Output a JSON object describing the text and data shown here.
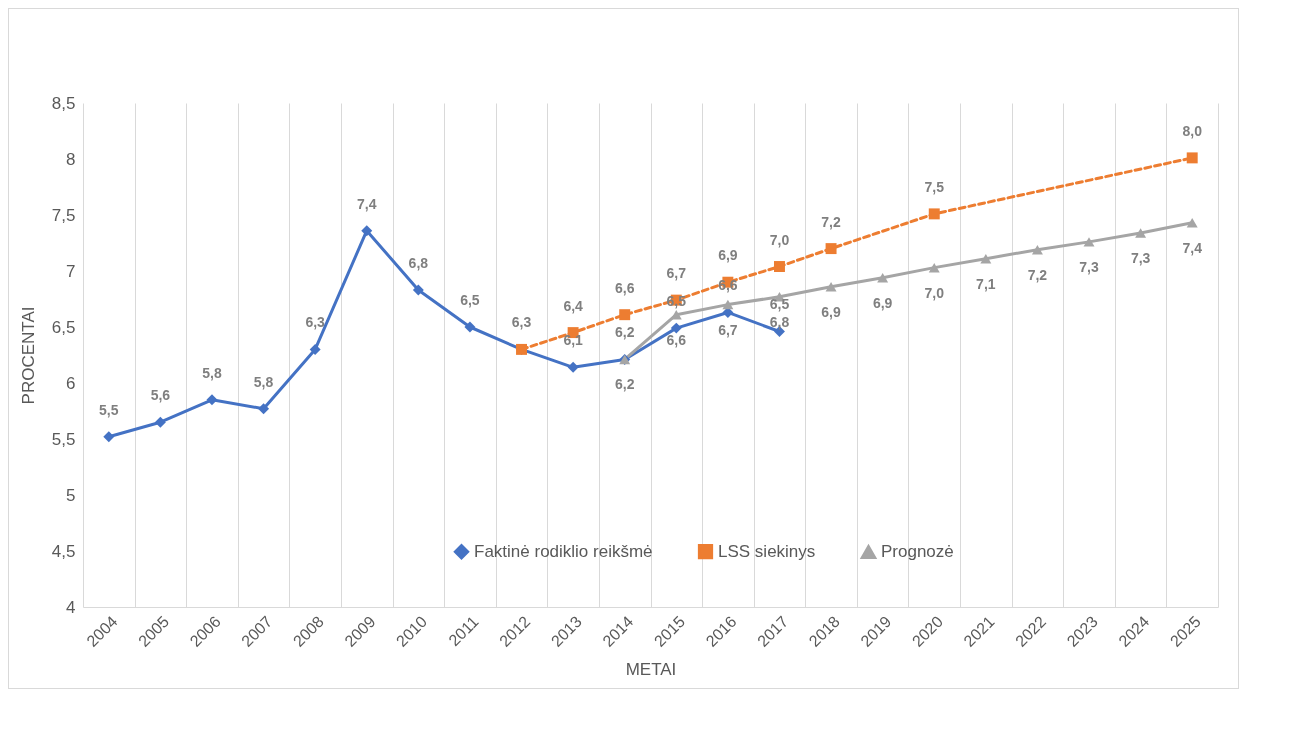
{
  "chart_data": {
    "type": "line",
    "xlabel": "METAI",
    "ylabel": "PROCENTAI",
    "categories": [
      "2004",
      "2005",
      "2006",
      "2007",
      "2008",
      "2009",
      "2010",
      "2011",
      "2012",
      "2013",
      "2014",
      "2015",
      "2016",
      "2017",
      "2018",
      "2019",
      "2020",
      "2021",
      "2022",
      "2023",
      "2024",
      "2025"
    ],
    "series": [
      {
        "name": "Faktinė rodiklio reikšmė",
        "color": "#4472c4",
        "marker": "diamond",
        "line_style": "solid",
        "values": [
          5.52,
          5.65,
          5.85,
          5.77,
          6.3,
          7.36,
          6.83,
          6.5,
          6.3,
          6.14,
          6.21,
          6.49,
          6.63,
          6.46,
          null,
          null,
          null,
          null,
          null,
          null,
          null,
          null
        ],
        "value_labels": [
          "5,5",
          "5,6",
          "5,8",
          "5,8",
          "6,3",
          "7,4",
          "6,8",
          "6,5",
          null,
          "6,1",
          "6,2",
          "6,5",
          "6,6",
          "6,5",
          null,
          null,
          null,
          null,
          null,
          null,
          null,
          null
        ]
      },
      {
        "name": "LSS siekinys",
        "color": "#ed7d31",
        "marker": "square",
        "line_style": "dashed",
        "values": [
          null,
          null,
          null,
          null,
          null,
          null,
          null,
          null,
          6.3,
          6.45,
          6.61,
          6.74,
          6.9,
          7.04,
          7.2,
          null,
          7.51,
          null,
          null,
          null,
          null,
          8.01
        ],
        "value_labels": [
          null,
          null,
          null,
          null,
          null,
          null,
          null,
          null,
          "6,3",
          "6,4",
          "6,6",
          "6,7",
          "6,9",
          "7,0",
          "7,2",
          null,
          "7,5",
          null,
          null,
          null,
          null,
          "8,0"
        ]
      },
      {
        "name": "Prognozė",
        "color": "#a5a5a5",
        "marker": "triangle",
        "line_style": "solid",
        "values": [
          null,
          null,
          null,
          null,
          null,
          null,
          null,
          null,
          null,
          null,
          6.21,
          6.61,
          6.7,
          6.77,
          6.86,
          6.94,
          7.03,
          7.11,
          7.19,
          7.26,
          7.34,
          7.43
        ],
        "value_labels": [
          null,
          null,
          null,
          null,
          null,
          null,
          null,
          null,
          null,
          null,
          "6,2",
          "6,6",
          "6,7",
          "6,8",
          "6,9",
          "6,9",
          "7,0",
          "7,1",
          "7,2",
          "7,3",
          "7,3",
          "7,4"
        ]
      }
    ],
    "ylim": [
      4,
      8.5
    ],
    "yticks": [
      4,
      {
        "value": 4.5,
        "label": "4,5"
      },
      5,
      {
        "value": 5.5,
        "label": "5,5"
      },
      6,
      {
        "value": 6.5,
        "label": "6,5"
      },
      7,
      {
        "value": 7.5,
        "label": "7,5"
      },
      8,
      {
        "value": 8.5,
        "label": "8,5"
      }
    ],
    "grid": "x",
    "legend": "bottom"
  }
}
